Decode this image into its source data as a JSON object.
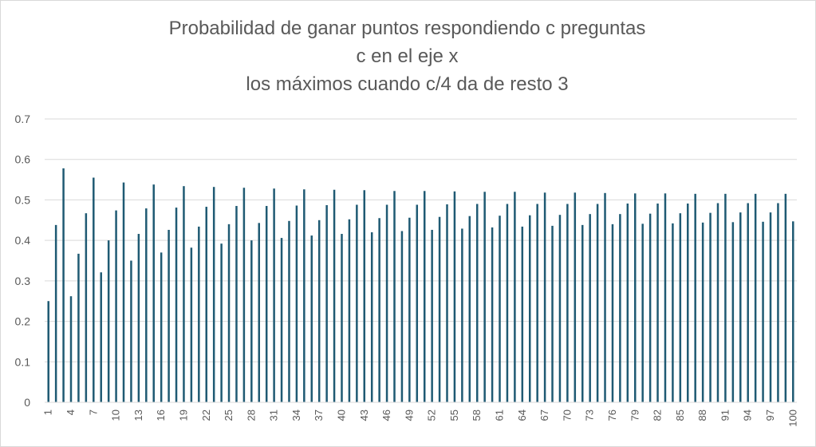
{
  "chart_data": {
    "type": "bar",
    "title": [
      "Probabilidad de ganar puntos respondiendo c preguntas",
      "c en el eje x",
      "los máximos cuando c/4 da de resto 3"
    ],
    "xlabel": "",
    "ylabel": "",
    "ylim": [
      0,
      0.7
    ],
    "yticks": [
      "0",
      "0.1",
      "0.2",
      "0.3",
      "0.4",
      "0.5",
      "0.6",
      "0.7"
    ],
    "grid": true,
    "bar_color": "#1f5a73",
    "grid_color": "#d9d9d9",
    "categories": [
      "1",
      "2",
      "3",
      "4",
      "5",
      "6",
      "7",
      "8",
      "9",
      "10",
      "11",
      "12",
      "13",
      "14",
      "15",
      "16",
      "17",
      "18",
      "19",
      "20",
      "21",
      "22",
      "23",
      "24",
      "25",
      "26",
      "27",
      "28",
      "29",
      "30",
      "31",
      "32",
      "33",
      "34",
      "35",
      "36",
      "37",
      "38",
      "39",
      "40",
      "41",
      "42",
      "43",
      "44",
      "45",
      "46",
      "47",
      "48",
      "49",
      "50",
      "51",
      "52",
      "53",
      "54",
      "55",
      "56",
      "57",
      "58",
      "59",
      "60",
      "61",
      "62",
      "63",
      "64",
      "65",
      "66",
      "67",
      "68",
      "69",
      "70",
      "71",
      "72",
      "73",
      "74",
      "75",
      "76",
      "77",
      "78",
      "79",
      "80",
      "81",
      "82",
      "83",
      "84",
      "85",
      "86",
      "87",
      "88",
      "89",
      "90",
      "91",
      "92",
      "93",
      "94",
      "95",
      "96",
      "97",
      "98",
      "99",
      "100"
    ],
    "x_tick_labels": [
      "1",
      "4",
      "7",
      "10",
      "13",
      "16",
      "19",
      "22",
      "25",
      "28",
      "31",
      "34",
      "37",
      "40",
      "43",
      "46",
      "49",
      "52",
      "55",
      "58",
      "61",
      "64",
      "67",
      "70",
      "73",
      "76",
      "79",
      "82",
      "85",
      "88",
      "91",
      "94",
      "97",
      "100"
    ],
    "values": [
      0.25,
      0.438,
      0.578,
      0.262,
      0.367,
      0.467,
      0.555,
      0.321,
      0.4,
      0.474,
      0.543,
      0.35,
      0.416,
      0.479,
      0.538,
      0.37,
      0.426,
      0.481,
      0.534,
      0.382,
      0.434,
      0.483,
      0.532,
      0.392,
      0.44,
      0.485,
      0.53,
      0.4,
      0.443,
      0.485,
      0.528,
      0.406,
      0.448,
      0.486,
      0.526,
      0.412,
      0.45,
      0.487,
      0.525,
      0.416,
      0.452,
      0.488,
      0.524,
      0.42,
      0.455,
      0.488,
      0.522,
      0.423,
      0.456,
      0.488,
      0.522,
      0.426,
      0.458,
      0.489,
      0.521,
      0.429,
      0.46,
      0.49,
      0.52,
      0.432,
      0.461,
      0.49,
      0.52,
      0.434,
      0.462,
      0.49,
      0.518,
      0.436,
      0.463,
      0.49,
      0.518,
      0.438,
      0.465,
      0.49,
      0.517,
      0.44,
      0.465,
      0.491,
      0.516,
      0.441,
      0.466,
      0.491,
      0.516,
      0.442,
      0.467,
      0.491,
      0.515,
      0.444,
      0.468,
      0.492,
      0.515,
      0.445,
      0.469,
      0.492,
      0.515,
      0.446,
      0.469,
      0.492,
      0.515,
      0.447
    ]
  }
}
